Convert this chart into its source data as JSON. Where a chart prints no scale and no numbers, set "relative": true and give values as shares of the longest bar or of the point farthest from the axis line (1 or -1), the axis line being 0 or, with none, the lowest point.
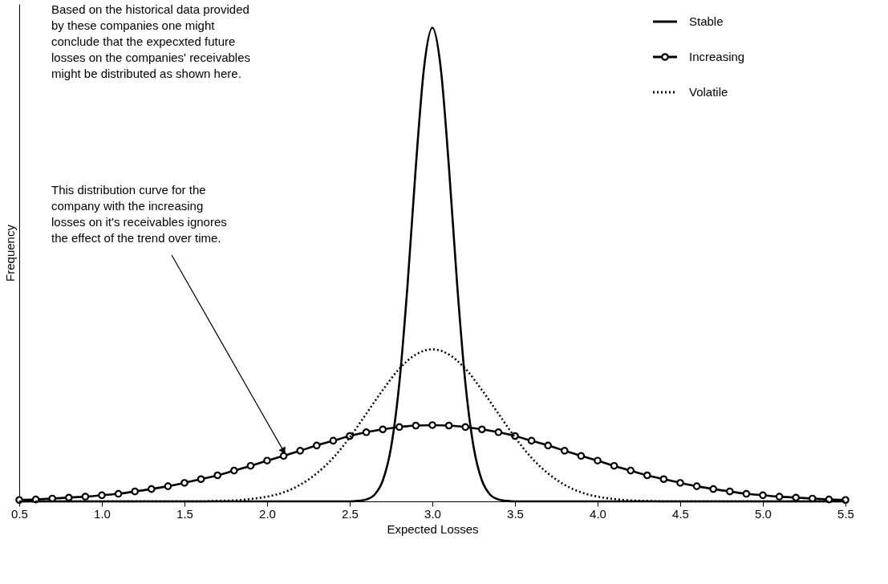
{
  "chart_data": {
    "type": "line",
    "relative": true,
    "xlabel": "Expected Losses",
    "ylabel": "Frequency",
    "xlim": [
      0.5,
      5.5
    ],
    "xticks": [
      0.5,
      {
        "value": 1,
        "label": "1.0"
      },
      1.5,
      {
        "value": 2,
        "label": "2.0"
      },
      2.5,
      {
        "value": 3,
        "label": "3.0"
      },
      3.5,
      {
        "value": 4,
        "label": "4.0"
      },
      4.5,
      {
        "value": 5,
        "label": "5.0"
      },
      5.5
    ],
    "grid": false,
    "legend": "top right",
    "annotations": [
      "Based on the historical data provided\nby these companies one might\nconclude that the expecxted future\nlosses on the companies' receivables\nmight be distributed as shown here.",
      {
        "text": "This distribution curve for the\ncompany with the increasing\nlosses on it's receivables ignores\nthe effect of the trend over time.",
        "x": 2.1,
        "y": 0.106
      }
    ],
    "series": [
      {
        "name": "Stable",
        "color": "#000000",
        "marker": "none",
        "line_style": "solid",
        "x": [
          0.5,
          2.5,
          2.55,
          2.6,
          2.65,
          2.7,
          2.75,
          2.8,
          2.85,
          2.9,
          2.95,
          3.0,
          3.05,
          3.1,
          3.15,
          3.2,
          3.25,
          3.3,
          3.35,
          3.4,
          3.45,
          3.5,
          5.5
        ],
        "values": [
          0,
          0,
          0.001,
          0.004,
          0.014,
          0.044,
          0.114,
          0.249,
          0.458,
          0.707,
          0.917,
          1,
          0.917,
          0.707,
          0.458,
          0.249,
          0.114,
          0.044,
          0.014,
          0.004,
          0.001,
          0,
          0
        ]
      },
      {
        "name": "Increasing",
        "color": "#000000",
        "marker": "circle",
        "line_style": "solid",
        "x": [
          0.5,
          0.6,
          0.7,
          0.8,
          0.9,
          1.0,
          1.1,
          1.2,
          1.3,
          1.4,
          1.5,
          1.6,
          1.7,
          1.8,
          1.9,
          2.0,
          2.1,
          2.2,
          2.3,
          2.4,
          2.5,
          2.6,
          2.7,
          2.8,
          2.9,
          3.0,
          3.1,
          3.2,
          3.3,
          3.4,
          3.5,
          3.6,
          3.7,
          3.8,
          3.9,
          4.0,
          4.1,
          4.2,
          4.3,
          4.4,
          4.5,
          4.6,
          4.7,
          4.8,
          4.9,
          5.0,
          5.1,
          5.2,
          5.3,
          5.4,
          5.5
        ],
        "values": [
          0.003,
          0.004,
          0.006,
          0.008,
          0.01,
          0.013,
          0.016,
          0.021,
          0.026,
          0.032,
          0.039,
          0.047,
          0.055,
          0.065,
          0.075,
          0.086,
          0.096,
          0.107,
          0.118,
          0.128,
          0.138,
          0.146,
          0.152,
          0.157,
          0.16,
          0.161,
          0.16,
          0.157,
          0.152,
          0.146,
          0.138,
          0.128,
          0.118,
          0.107,
          0.096,
          0.086,
          0.075,
          0.065,
          0.055,
          0.047,
          0.039,
          0.032,
          0.026,
          0.021,
          0.016,
          0.013,
          0.01,
          0.008,
          0.006,
          0.004,
          0.003
        ]
      },
      {
        "name": "Volatile",
        "color": "#000000",
        "marker": "none",
        "line_style": "dotted",
        "x": [
          0.5,
          0.6,
          0.7,
          0.8,
          0.9,
          1.0,
          1.1,
          1.2,
          1.3,
          1.4,
          1.5,
          1.6,
          1.7,
          1.8,
          1.9,
          2.0,
          2.1,
          2.2,
          2.3,
          2.4,
          2.5,
          2.6,
          2.7,
          2.8,
          2.9,
          3.0,
          3.1,
          3.2,
          3.3,
          3.4,
          3.5,
          3.6,
          3.7,
          3.8,
          3.9,
          4.0,
          4.1,
          4.2,
          4.3,
          4.4,
          4.5,
          4.6,
          4.7,
          4.8,
          4.9,
          5.0,
          5.1,
          5.2,
          5.3,
          5.4,
          5.5
        ],
        "values": [
          0,
          0,
          0,
          0,
          0,
          0,
          0,
          0,
          0,
          0,
          0,
          0,
          0.001,
          0.002,
          0.005,
          0.01,
          0.019,
          0.035,
          0.059,
          0.092,
          0.135,
          0.185,
          0.235,
          0.28,
          0.31,
          0.321,
          0.31,
          0.28,
          0.235,
          0.185,
          0.135,
          0.092,
          0.059,
          0.035,
          0.019,
          0.01,
          0.005,
          0.002,
          0.001,
          0,
          0,
          0,
          0,
          0,
          0,
          0,
          0,
          0,
          0,
          0,
          0
        ]
      }
    ]
  }
}
